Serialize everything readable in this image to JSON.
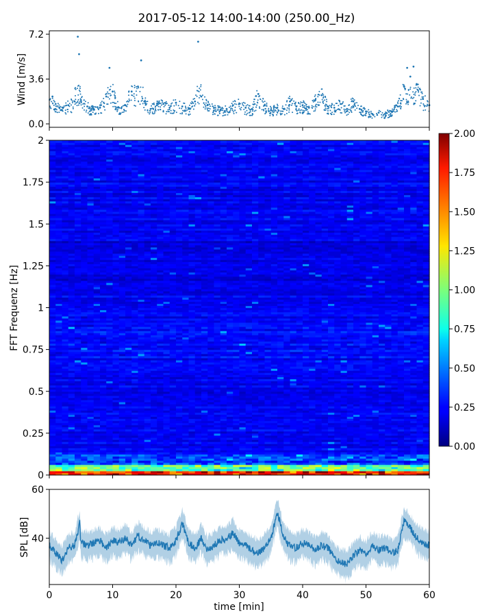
{
  "chart_data": [
    {
      "type": "scatter",
      "title": "2017-05-12 14:00-14:00 (250.00_Hz)",
      "ylabel": "Wind [m/s]",
      "xlim": [
        0,
        60
      ],
      "ylim": [
        0,
        7.2
      ],
      "yticks": [
        "0.0",
        "3.6",
        "7.2"
      ],
      "series": [
        {
          "color": "#1f77b4",
          "x": [
            0.5,
            1,
            2,
            3,
            4,
            4.5,
            4.7,
            5,
            6,
            7,
            8,
            9,
            9.5,
            10,
            11,
            12,
            13,
            14,
            14.5,
            15,
            16,
            17,
            18,
            19,
            20,
            21,
            22,
            23,
            23.5,
            24,
            25,
            26,
            27,
            28,
            29,
            30,
            31,
            32,
            33,
            34,
            35,
            36,
            37,
            38,
            39,
            40,
            41,
            42,
            43,
            44,
            45,
            46,
            47,
            48,
            49,
            50,
            51,
            52,
            53,
            54,
            55,
            56,
            56.5,
            57,
            57.5,
            58,
            59,
            60
          ],
          "y": [
            2.2,
            1.6,
            1.1,
            1.5,
            1.8,
            7.0,
            5.6,
            1.9,
            1.4,
            1.2,
            1.3,
            2.2,
            4.5,
            2.6,
            1.3,
            1.5,
            2.6,
            3.0,
            5.1,
            1.8,
            1.2,
            1.5,
            1.6,
            1.3,
            1.7,
            1.4,
            1.2,
            1.8,
            6.6,
            2.2,
            1.5,
            1.3,
            1.1,
            1.2,
            1.5,
            1.6,
            1.3,
            1.2,
            2.4,
            1.5,
            1.1,
            1.3,
            1.2,
            1.8,
            1.4,
            1.5,
            1.3,
            1.9,
            2.3,
            1.4,
            1.3,
            1.6,
            1.2,
            1.8,
            1.2,
            1.0,
            0.8,
            0.9,
            0.8,
            1.0,
            1.4,
            3.0,
            4.5,
            3.8,
            4.6,
            3.2,
            2.0,
            1.5
          ]
        }
      ]
    },
    {
      "type": "heatmap",
      "ylabel": "FFT Frequenz [Hz]",
      "xlim": [
        0,
        60
      ],
      "ylim": [
        0,
        2
      ],
      "yticks": [
        "0",
        "0.25",
        "0.5",
        "0.75",
        "1",
        "1.25",
        "1.5",
        "1.75",
        "2"
      ],
      "colormap": "jet",
      "colorbar": {
        "range": [
          0,
          2
        ],
        "ticks": [
          "0.00",
          "0.25",
          "0.50",
          "0.75",
          "1.00",
          "1.25",
          "1.50",
          "1.75",
          "2.00"
        ]
      }
    },
    {
      "type": "line",
      "xlabel": "time [min]",
      "ylabel": "SPL [dB]",
      "xlim": [
        0,
        60
      ],
      "ylim": [
        21,
        60
      ],
      "xticks": [
        "0",
        "10",
        "20",
        "30",
        "40",
        "50",
        "60"
      ],
      "yticks": [
        "40",
        "60"
      ],
      "series": [
        {
          "color": "#1f77b4",
          "x": [
            0,
            1,
            2,
            3,
            4,
            4.8,
            5,
            6,
            7,
            8,
            9,
            10,
            11,
            12,
            13,
            14,
            15,
            16,
            17,
            18,
            19,
            20,
            21,
            22,
            23,
            24,
            25,
            26,
            27,
            28,
            29,
            30,
            31,
            32,
            33,
            34,
            35,
            36,
            37,
            38,
            39,
            40,
            41,
            42,
            43,
            44,
            45,
            46,
            47,
            48,
            49,
            50,
            51,
            52,
            53,
            54,
            55,
            56,
            57,
            58,
            59,
            60
          ],
          "y": [
            37,
            34,
            31,
            36,
            37,
            46,
            38,
            37,
            38,
            39,
            36,
            39,
            38,
            40,
            37,
            41,
            39,
            37,
            38,
            37,
            36,
            39,
            46,
            38,
            36,
            40,
            35,
            37,
            39,
            40,
            42,
            38,
            37,
            35,
            34,
            36,
            40,
            51,
            40,
            37,
            36,
            38,
            37,
            35,
            37,
            36,
            32,
            30,
            29,
            33,
            35,
            33,
            37,
            35,
            36,
            34,
            35,
            47,
            44,
            40,
            38,
            37
          ]
        }
      ]
    }
  ]
}
